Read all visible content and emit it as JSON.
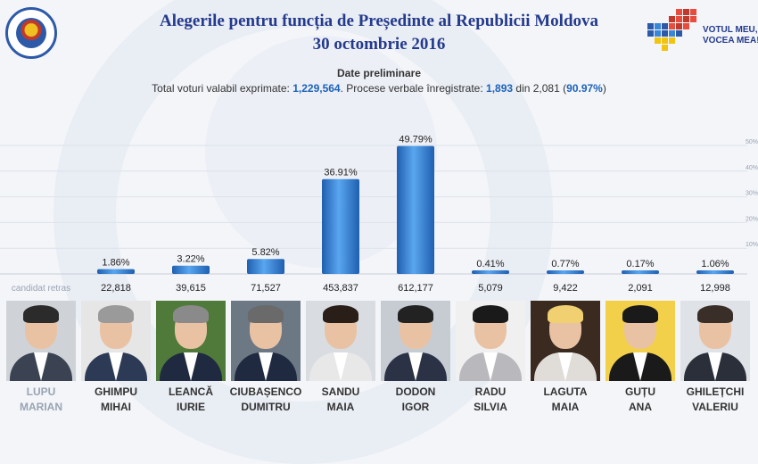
{
  "header": {
    "title_line1": "Alegerile pentru funcția de Președinte al Republicii Moldova",
    "title_line2": "30 octombrie 2016",
    "seal_text": "REPUBLICA MOLDOVA COMISIA ELECTORALĂ CENTRALĂ",
    "logo_line1": "VOTUL MEU,",
    "logo_line2": "VOCEA MEA!"
  },
  "summary": {
    "heading": "Date preliminare",
    "votes_label": "Total voturi valabil exprimate:",
    "votes_value": "1,229,564",
    "pv_label": ". Procese verbale înregistrate:",
    "pv_value": "1,893",
    "pv_of": "din 2,081",
    "pv_pct": "90.97%"
  },
  "chart_data": {
    "type": "bar",
    "categories": [
      "LUPU MARIAN",
      "GHIMPU MIHAI",
      "LEANCĂ IURIE",
      "CIUBAȘENCO DUMITRU",
      "SANDU MAIA",
      "DODON IGOR",
      "RADU SILVIA",
      "LAGUTA MAIA",
      "GUȚU ANA",
      "GHILEȚCHI VALERIU"
    ],
    "percent_labels": [
      null,
      "1.86%",
      "3.22%",
      "5.82%",
      "36.91%",
      "49.79%",
      "0.41%",
      "0.77%",
      "0.17%",
      "1.06%"
    ],
    "values": [
      null,
      1.86,
      3.22,
      5.82,
      36.91,
      49.79,
      0.41,
      0.77,
      0.17,
      1.06
    ],
    "votes": [
      "candidat retras",
      "22,818",
      "39,615",
      "71,527",
      "453,837",
      "612,177",
      "5,079",
      "9,422",
      "2,091",
      "12,998"
    ],
    "ylim": [
      0,
      50
    ],
    "yticks": [
      "10%",
      "20%",
      "30%",
      "40%",
      "50%"
    ],
    "ytick_values": [
      10,
      20,
      30,
      40,
      50
    ],
    "grid": true,
    "bar_color": "#3a86d8"
  },
  "candidates": [
    {
      "last": "LUPU",
      "first": "MARIAN",
      "withdrawn": true
    },
    {
      "last": "GHIMPU",
      "first": "MIHAI"
    },
    {
      "last": "LEANCĂ",
      "first": "IURIE"
    },
    {
      "last": "CIUBAȘENCO",
      "first": "DUMITRU"
    },
    {
      "last": "SANDU",
      "first": "MAIA"
    },
    {
      "last": "DODON",
      "first": "IGOR"
    },
    {
      "last": "RADU",
      "first": "SILVIA"
    },
    {
      "last": "LAGUTA",
      "first": "MAIA"
    },
    {
      "last": "GUȚU",
      "first": "ANA"
    },
    {
      "last": "GHILEȚCHI",
      "first": "VALERIU"
    }
  ]
}
